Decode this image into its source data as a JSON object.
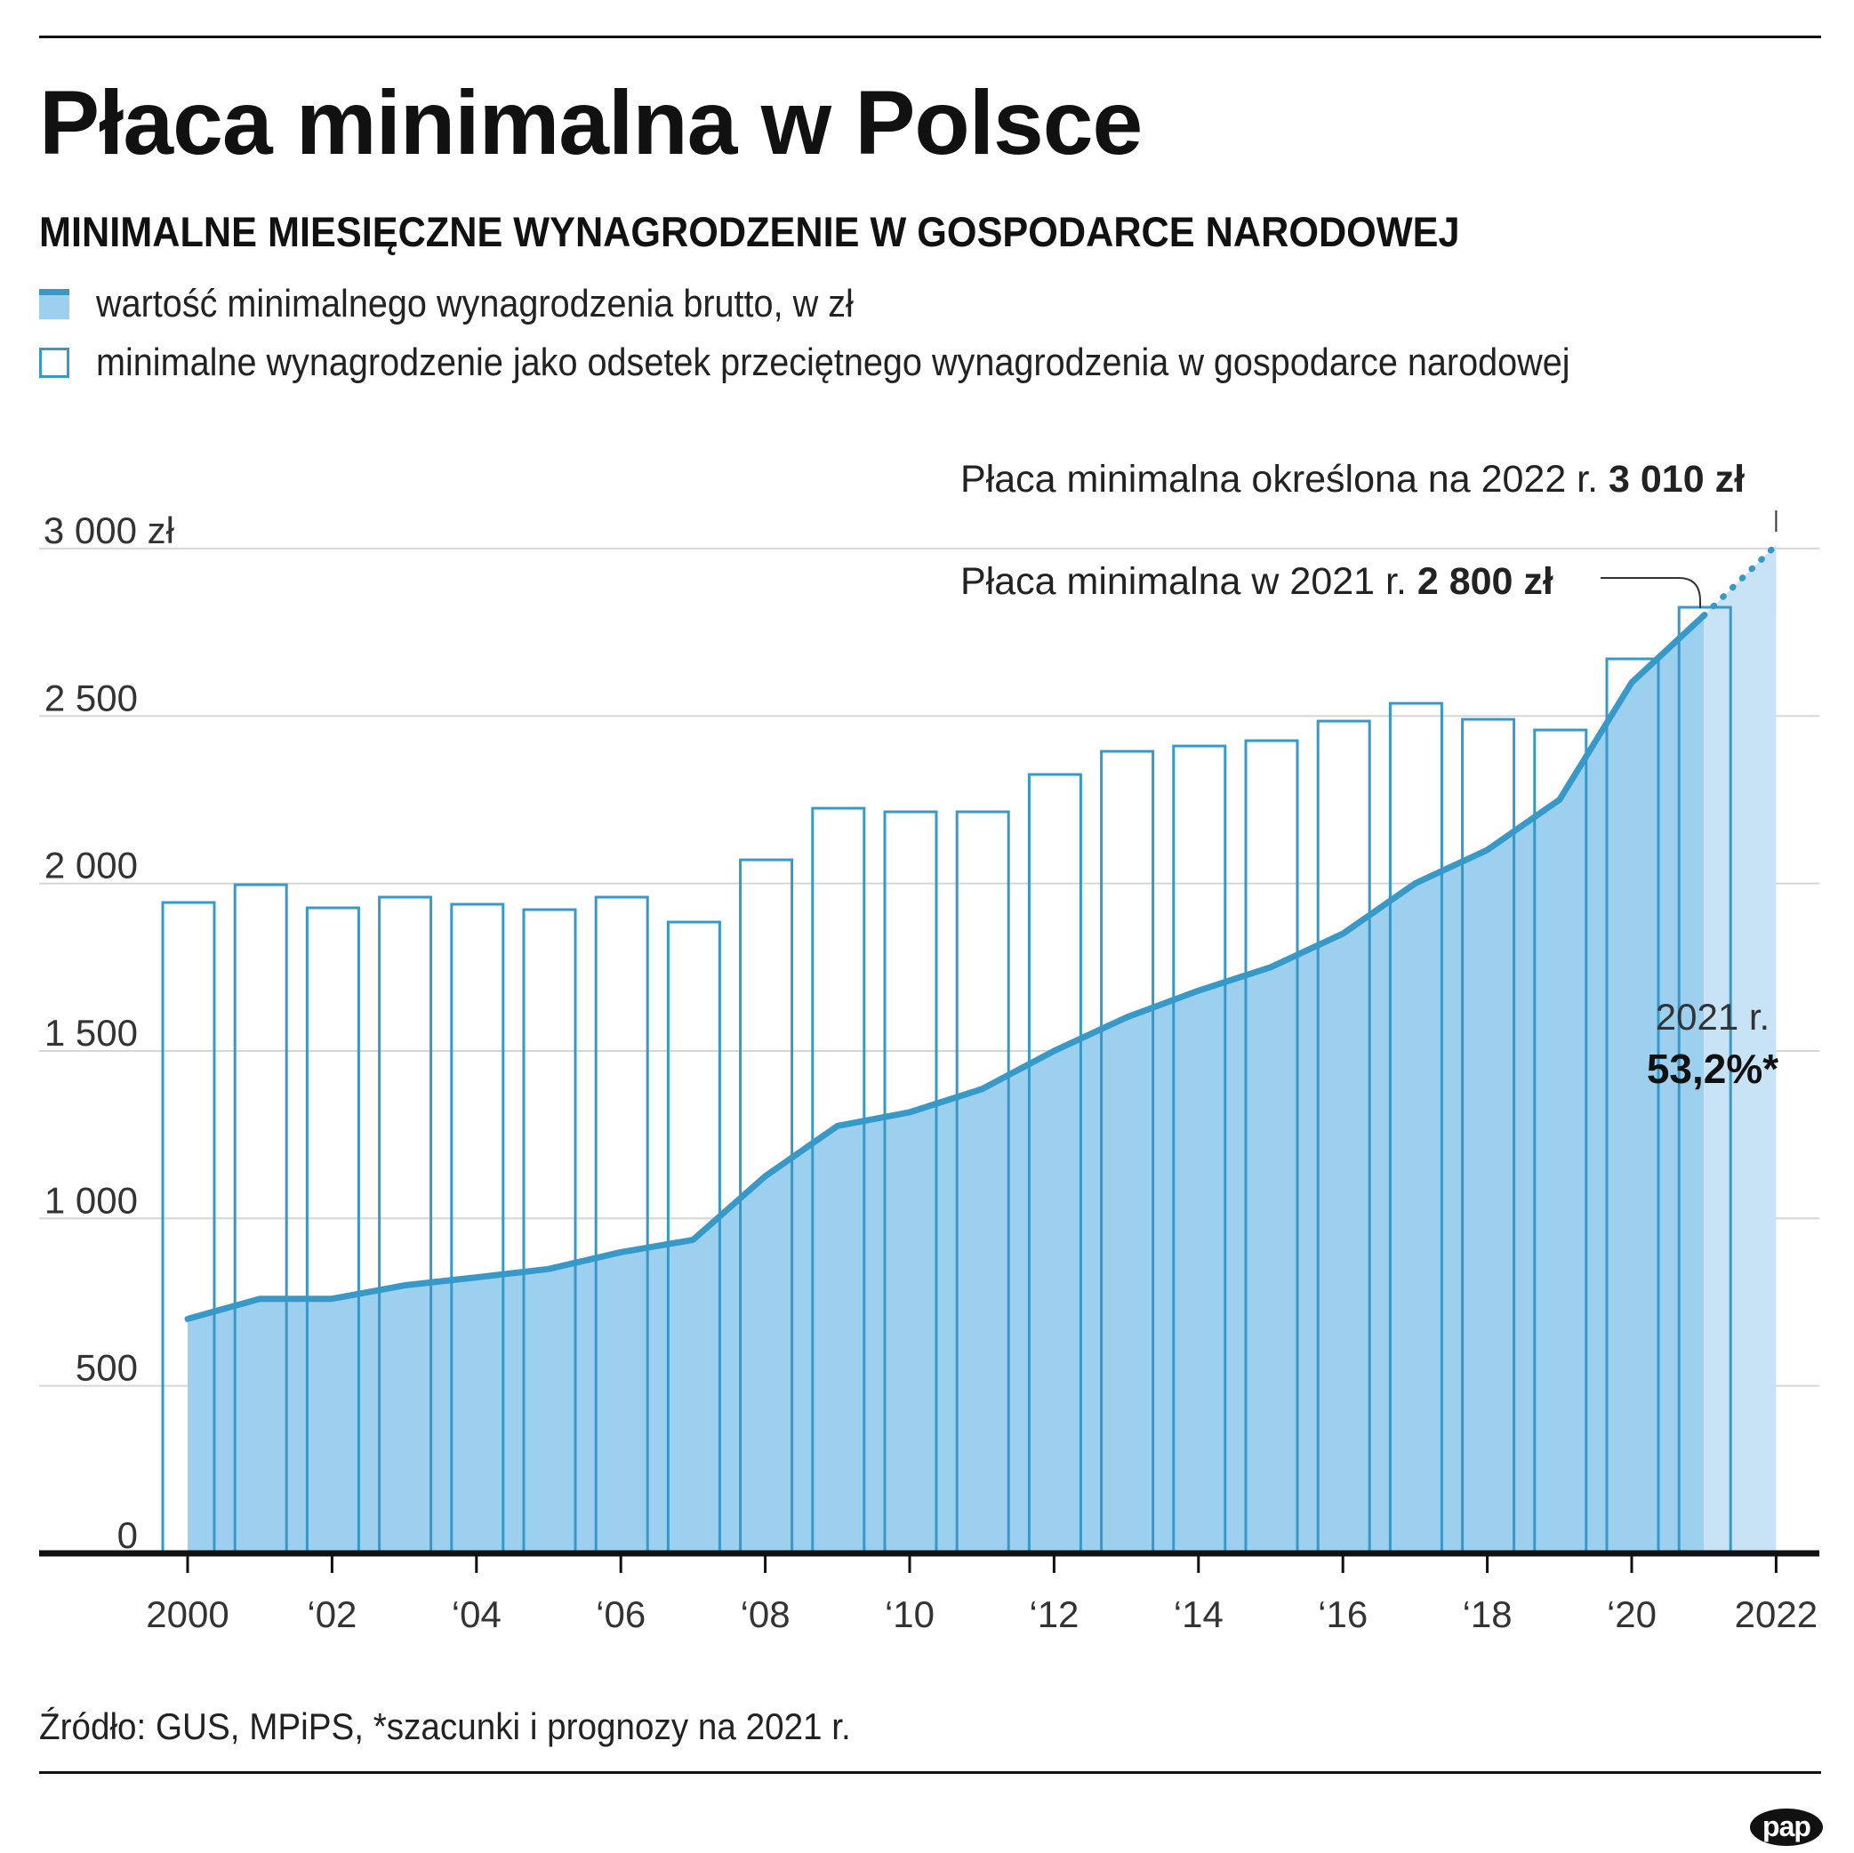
{
  "header": {
    "title": "Płaca minimalna w Polsce",
    "subtitle": "MINIMALNE MIESIĘCZNE WYNAGRODZENIE W GOSPODARCE NARODOWEJ"
  },
  "legend": {
    "area_label": "wartość minimalnego wynagrodzenia brutto, w zł",
    "bar_label": "minimalne wynagrodzenie jako odsetek przeciętnego wynagrodzenia w gospodarce narodowej"
  },
  "annotations": {
    "y2022_text": "Płaca minimalna określona na 2022 r.",
    "y2022_value": "3 010 zł",
    "y2021_text": "Płaca minimalna w 2021 r.",
    "y2021_value": "2 800 zł",
    "pct2021_year": "2021 r.",
    "pct2021_value": "53,2%*"
  },
  "colors": {
    "area": "#9dd0ef",
    "area_forecast": "#c8e3f6",
    "line": "#3699c8",
    "grid": "#d6d6d6"
  },
  "footer": {
    "source": "Źródło: GUS, MPiPS, *szacunki i prognozy na 2021 r.",
    "logo": "pap"
  },
  "chart_data": {
    "type": "area",
    "ylim": [
      0,
      3000
    ],
    "grid": true,
    "y_ticks": [
      {
        "value": 3000,
        "label": "3 000 zł"
      },
      {
        "value": 2500,
        "label": "2 500"
      },
      {
        "value": 2000,
        "label": "2 000"
      },
      {
        "value": 1500,
        "label": "1 500"
      },
      {
        "value": 1000,
        "label": "1 000"
      },
      {
        "value": 500,
        "label": "500"
      },
      {
        "value": 0,
        "label": "0"
      }
    ],
    "x_ticks": [
      {
        "year": 2000,
        "label": "2000"
      },
      {
        "year": 2002,
        "label": "‘02"
      },
      {
        "year": 2004,
        "label": "‘04"
      },
      {
        "year": 2006,
        "label": "‘06"
      },
      {
        "year": 2008,
        "label": "‘08"
      },
      {
        "year": 2010,
        "label": "‘10"
      },
      {
        "year": 2012,
        "label": "‘12"
      },
      {
        "year": 2014,
        "label": "‘14"
      },
      {
        "year": 2016,
        "label": "‘16"
      },
      {
        "year": 2018,
        "label": "‘18"
      },
      {
        "year": 2020,
        "label": "‘20"
      },
      {
        "year": 2022,
        "label": "2022"
      }
    ],
    "minimum_wage": {
      "unit": "zł",
      "years": [
        2000,
        2001,
        2002,
        2003,
        2004,
        2005,
        2006,
        2007,
        2008,
        2009,
        2010,
        2011,
        2012,
        2013,
        2014,
        2015,
        2016,
        2017,
        2018,
        2019,
        2020,
        2021
      ],
      "values": [
        700,
        760,
        760,
        800,
        824,
        849,
        899,
        936,
        1126,
        1276,
        1317,
        1386,
        1500,
        1600,
        1680,
        1750,
        1850,
        2000,
        2100,
        2250,
        2600,
        2800
      ]
    },
    "forecast": {
      "year": 2022,
      "value": 3010
    },
    "percent_of_average": {
      "unit": "%",
      "years": [
        2000,
        2001,
        2002,
        2003,
        2004,
        2005,
        2006,
        2007,
        2008,
        2009,
        2010,
        2011,
        2012,
        2013,
        2014,
        2015,
        2016,
        2017,
        2018,
        2019,
        2020,
        2021
      ],
      "values": [
        36.6,
        37.6,
        36.3,
        36.9,
        36.5,
        36.2,
        36.9,
        35.5,
        39.0,
        41.9,
        41.7,
        41.7,
        43.8,
        45.1,
        45.4,
        45.7,
        46.8,
        47.8,
        46.9,
        46.3,
        50.3,
        53.2
      ]
    }
  }
}
